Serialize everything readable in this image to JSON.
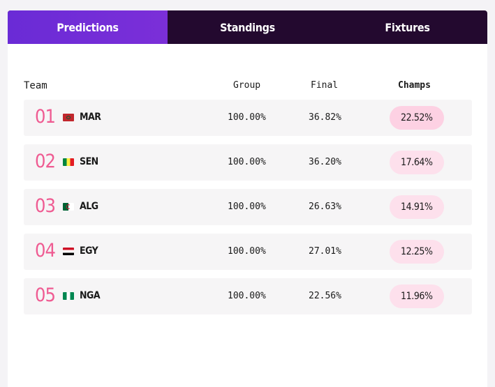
{
  "tabs": [
    {
      "label": "Predictions",
      "active": true
    },
    {
      "label": "Standings",
      "active": false
    },
    {
      "label": "Fixtures",
      "active": false
    }
  ],
  "table": {
    "headers": {
      "team": "Team",
      "group": "Group",
      "final": "Final",
      "champs": "Champs"
    },
    "rows": [
      {
        "rank": "01",
        "flag": "morocco-flag-icon",
        "code": "MAR",
        "group": "100.00%",
        "final": "36.82%",
        "champs": "22.52%"
      },
      {
        "rank": "02",
        "flag": "senegal-flag-icon",
        "code": "SEN",
        "group": "100.00%",
        "final": "36.20%",
        "champs": "17.64%"
      },
      {
        "rank": "03",
        "flag": "algeria-flag-icon",
        "code": "ALG",
        "group": "100.00%",
        "final": "26.63%",
        "champs": "14.91%"
      },
      {
        "rank": "04",
        "flag": "egypt-flag-icon",
        "code": "EGY",
        "group": "100.00%",
        "final": "27.01%",
        "champs": "12.25%"
      },
      {
        "rank": "05",
        "flag": "nigeria-flag-icon",
        "code": "NGA",
        "group": "100.00%",
        "final": "22.56%",
        "champs": "11.96%"
      }
    ]
  },
  "colors": {
    "active_tab": "#6a2bd6",
    "tab_bar": "#23092f",
    "rank": "#ef5b92",
    "pill": "#fde0ec",
    "row_bg": "#f6f5f6"
  }
}
